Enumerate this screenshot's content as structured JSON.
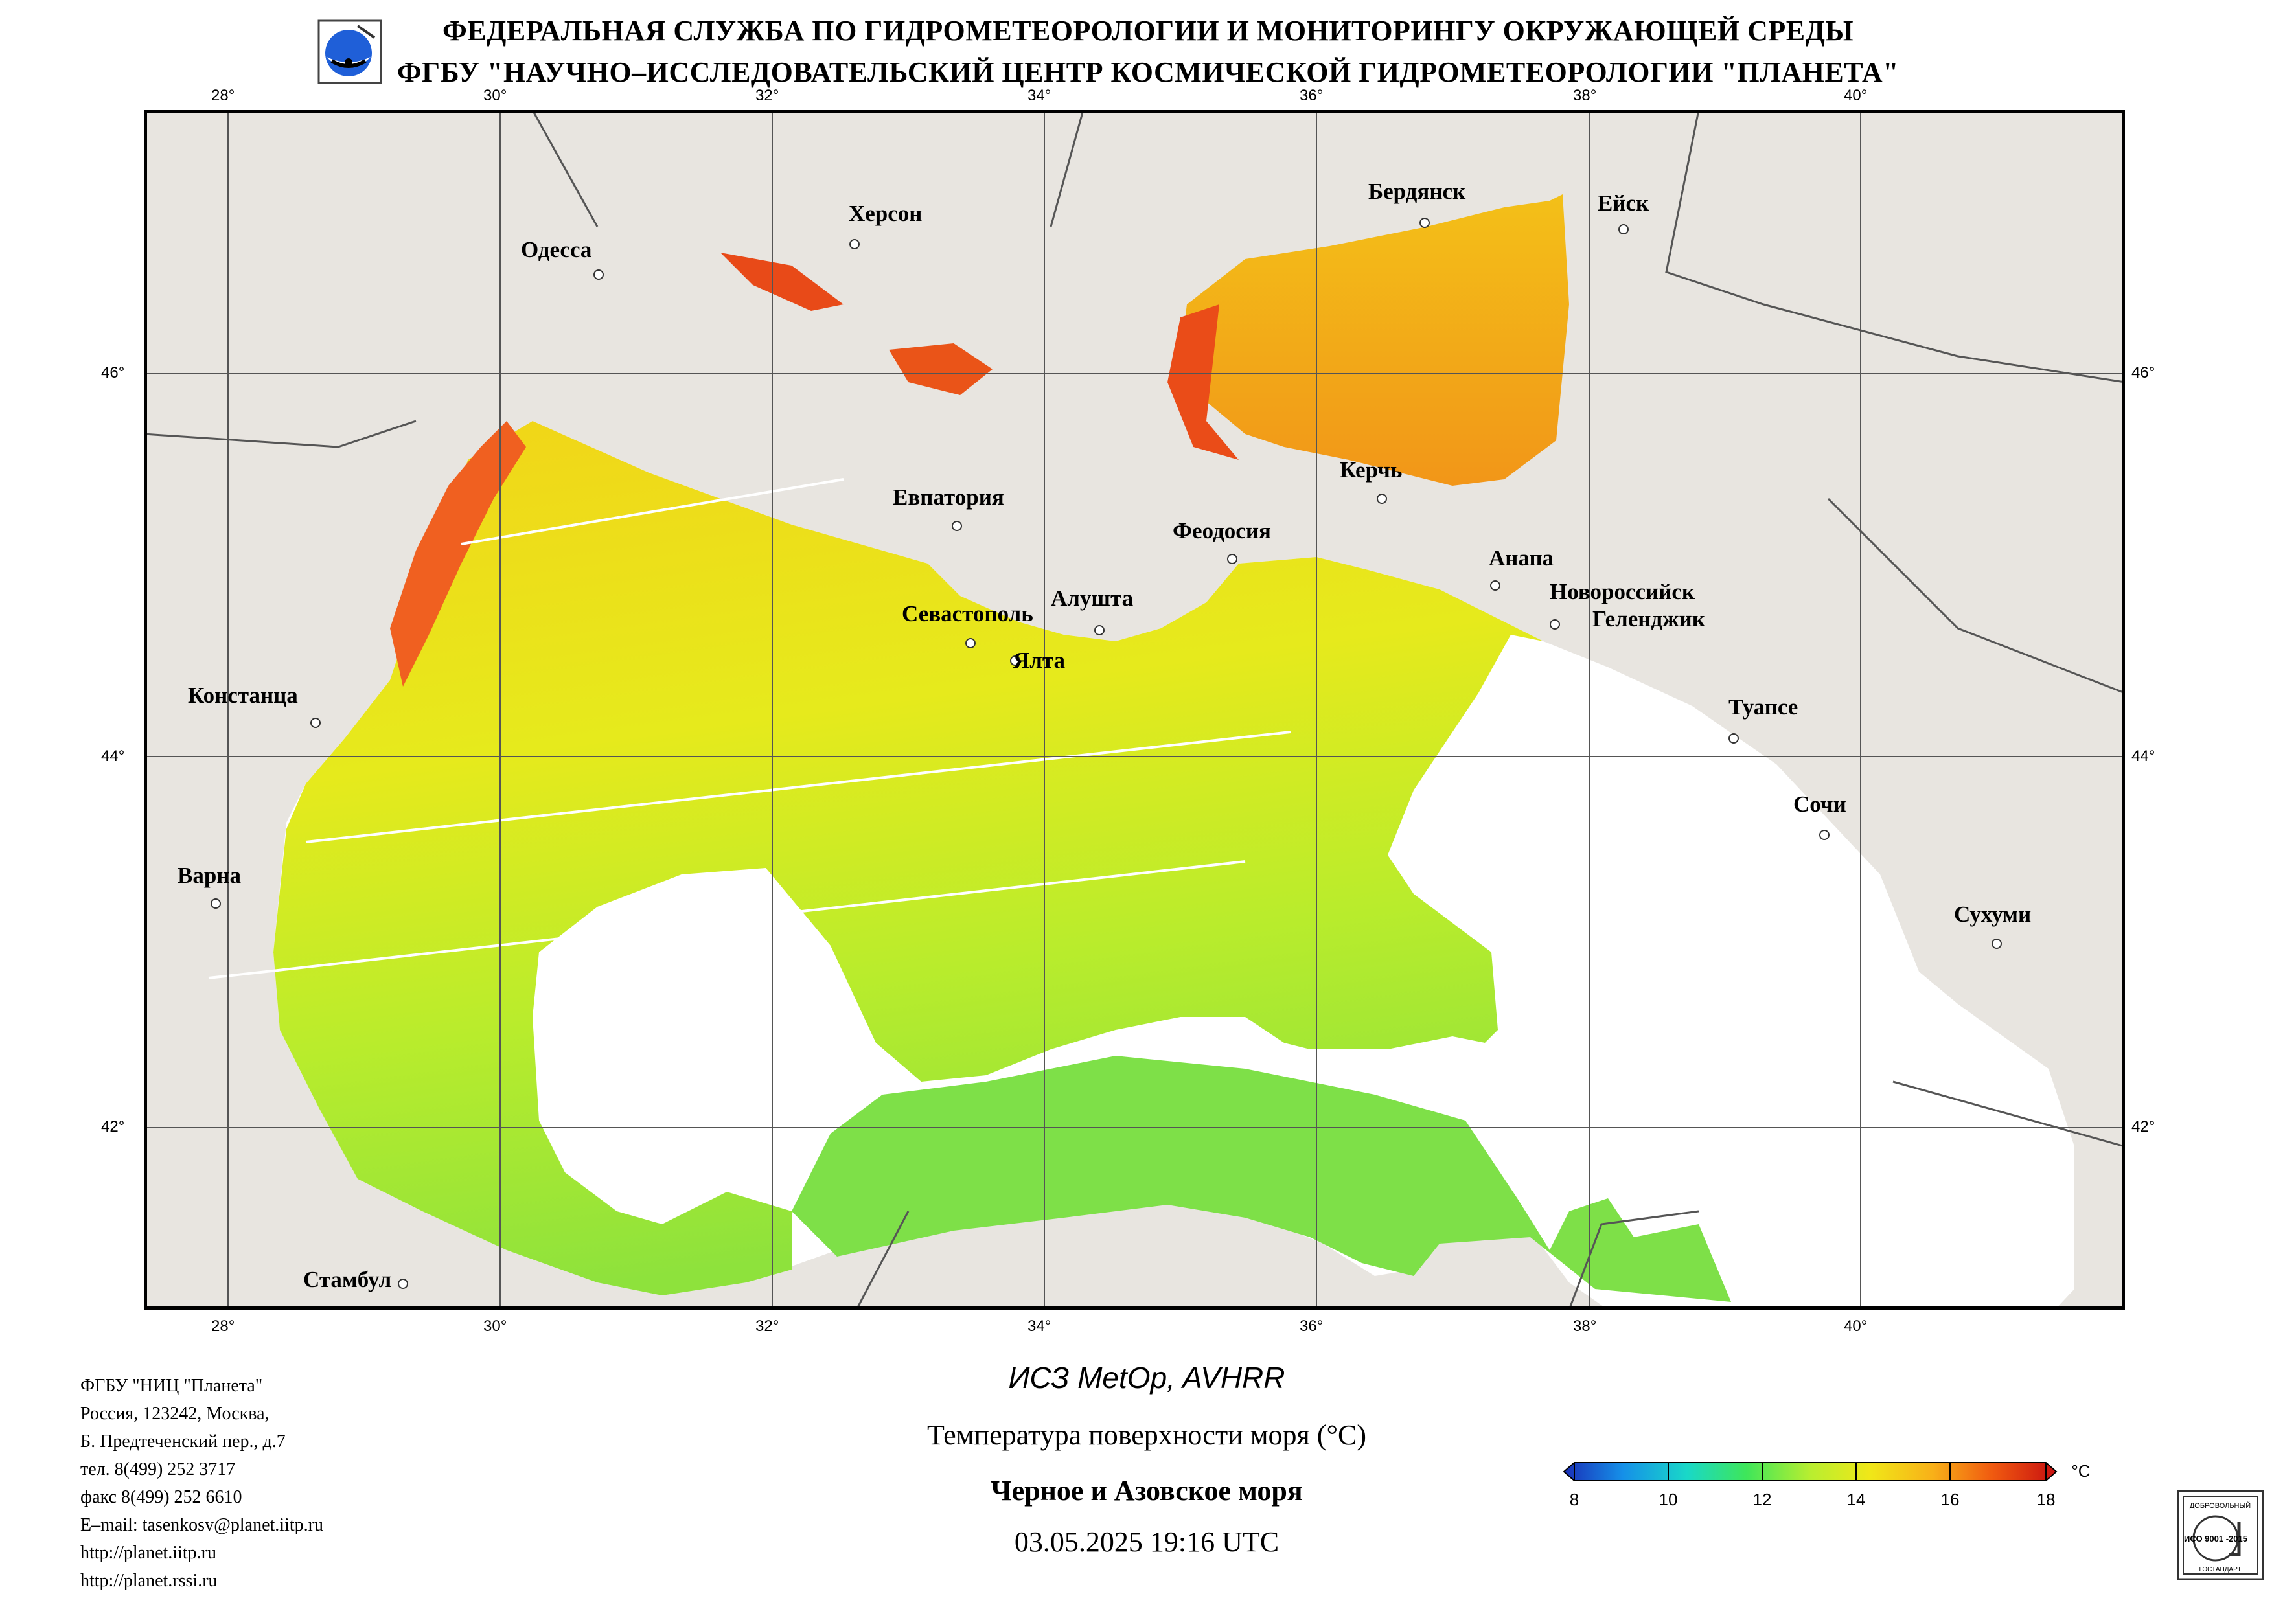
{
  "header": {
    "line1": "ФЕДЕРАЛЬНАЯ СЛУЖБА ПО ГИДРОМЕТЕОРОЛОГИИ И МОНИТОРИНГУ ОКРУЖАЮЩЕЙ СРЕДЫ",
    "line2": "ФГБУ \"НАУЧНО–ИССЛЕДОВАТЕЛЬСКИЙ ЦЕНТР КОСМИЧЕСКОЙ ГИДРОМЕТЕОРОЛОГИИ \"ПЛАНЕТА\""
  },
  "map": {
    "lon_labels": [
      "28°",
      "30°",
      "32°",
      "34°",
      "36°",
      "38°",
      "40°"
    ],
    "lat_labels": [
      "46°",
      "44°",
      "42°"
    ],
    "cities": [
      {
        "name": "Одесса"
      },
      {
        "name": "Херсон"
      },
      {
        "name": "Бердянск"
      },
      {
        "name": "Ейск"
      },
      {
        "name": "Керчь"
      },
      {
        "name": "Евпатория"
      },
      {
        "name": "Феодосия"
      },
      {
        "name": "Анапа"
      },
      {
        "name": "Новороссийск"
      },
      {
        "name": "Геленджик"
      },
      {
        "name": "Севастополь"
      },
      {
        "name": "Алушта"
      },
      {
        "name": "Ялта"
      },
      {
        "name": "Констанца"
      },
      {
        "name": "Туапсе"
      },
      {
        "name": "Сочи"
      },
      {
        "name": "Варна"
      },
      {
        "name": "Сухуми"
      },
      {
        "name": "Стамбул"
      }
    ]
  },
  "footer": {
    "org": "ФГБУ \"НИЦ \"Планета\"",
    "addr1": "Россия, 123242, Москва,",
    "addr2": "Б. Предтеченский пер., д.7",
    "phone": "тел. 8(499) 252 3717",
    "fax": "факс 8(499) 252 6610",
    "email": "E–mail: tasenkosv@planet.iitp.ru",
    "url1": "http://planet.iitp.ru",
    "url2": "http://planet.rssi.ru"
  },
  "product": {
    "satellite": "ИСЗ MetOp, AVHRR",
    "parameter": "Температура поверхности моря (°C)",
    "region": "Черное и Азовское моря",
    "datetime": "03.05.2025 19:16 UTC"
  },
  "colorbar": {
    "unit": "°C",
    "ticks": [
      "8",
      "10",
      "12",
      "14",
      "16",
      "18"
    ],
    "colors": [
      "#1a2fb8",
      "#1590e8",
      "#19d8c8",
      "#3ee65a",
      "#b8ee30",
      "#f0e818",
      "#f8b018",
      "#f05a10",
      "#c81010"
    ]
  },
  "certificate": {
    "top": "ДОБРОВОЛЬНЫЙ",
    "middle": "ИСО 9001 -2015",
    "bottom": "ГОСТАНДАРТ"
  },
  "colors": {
    "land": "#e8e5e0",
    "border": "#444444",
    "nodata": "#ffffff"
  }
}
